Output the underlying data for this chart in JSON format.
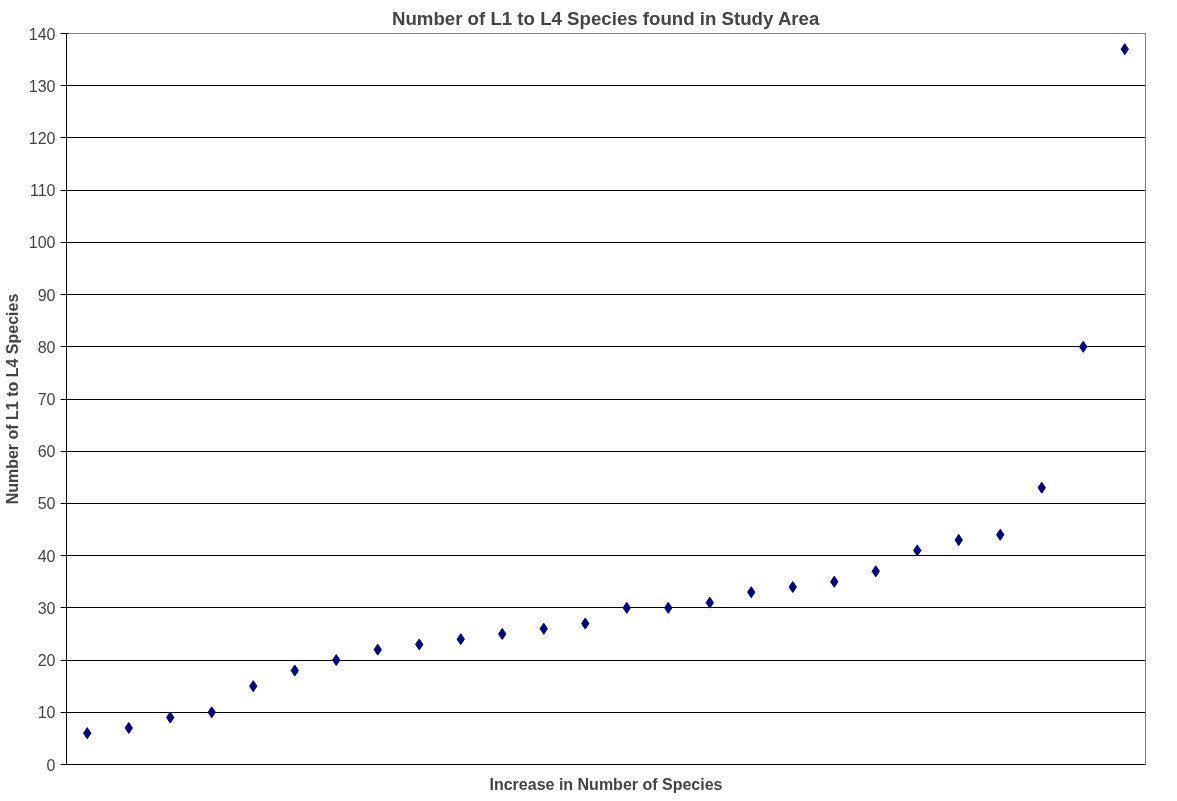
{
  "chart_data": {
    "type": "scatter",
    "title": "Number of L1 to L4 Species found in Study Area",
    "xlabel": "Increase in Number of Species",
    "ylabel": "Number of L1 to L4 Species",
    "categories": [
      null,
      null,
      null,
      null,
      null,
      null,
      null,
      null,
      null,
      null,
      null,
      null,
      null,
      null,
      null,
      null,
      null,
      null,
      null,
      null,
      null,
      null,
      null,
      null,
      null,
      null
    ],
    "series": [
      {
        "color": "#000080",
        "values": [
          6,
          7,
          9,
          10,
          15,
          18,
          20,
          22,
          23,
          24,
          25,
          26,
          27,
          30,
          30,
          31,
          33,
          34,
          35,
          37,
          41,
          43,
          44,
          53,
          80,
          137
        ]
      }
    ],
    "ylim": [
      0,
      140
    ],
    "yticks": [
      0,
      10,
      20,
      30,
      40,
      50,
      60,
      70,
      80,
      90,
      100,
      110,
      120,
      130,
      140
    ],
    "grid": "y",
    "marker": "diamond",
    "tick_labels": "y"
  }
}
